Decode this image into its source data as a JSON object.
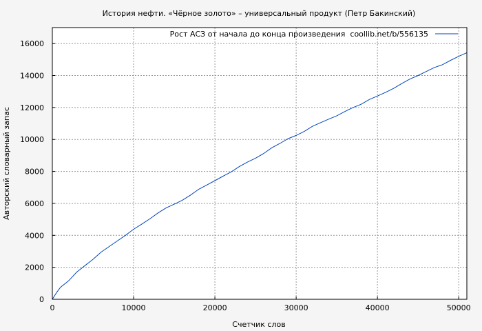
{
  "chart_data": {
    "type": "line",
    "title": "История нефти. «Чёрное золото» – универсальный продукт (Петр Бакинский)",
    "xlabel": "Счетчик слов",
    "ylabel": "Авторский словарный запас",
    "xlim": [
      0,
      51000
    ],
    "ylim": [
      0,
      17000
    ],
    "xticks": [
      0,
      10000,
      20000,
      30000,
      40000,
      50000
    ],
    "yticks": [
      0,
      2000,
      4000,
      6000,
      8000,
      10000,
      12000,
      14000,
      16000
    ],
    "grid": true,
    "legend_position": "top-right",
    "series": [
      {
        "name": "Рост АСЗ от начала до конца произведения  coollib.net/b/556135",
        "color": "#0044bb",
        "x": [
          0,
          500,
          1000,
          2000,
          3000,
          4000,
          5000,
          6000,
          7000,
          8000,
          9000,
          10000,
          11000,
          12000,
          13000,
          14000,
          15000,
          16000,
          17000,
          18000,
          19000,
          20000,
          21000,
          22000,
          23000,
          24000,
          25000,
          26000,
          27000,
          28000,
          29000,
          30000,
          31000,
          32000,
          33000,
          34000,
          35000,
          36000,
          37000,
          38000,
          39000,
          40000,
          41000,
          42000,
          43000,
          44000,
          45000,
          46000,
          47000,
          48000,
          49000,
          50000,
          51000
        ],
        "y": [
          0,
          400,
          750,
          1150,
          1700,
          2100,
          2500,
          2950,
          3300,
          3650,
          4000,
          4380,
          4700,
          5030,
          5400,
          5720,
          5950,
          6200,
          6520,
          6880,
          7150,
          7420,
          7700,
          7970,
          8300,
          8580,
          8830,
          9120,
          9480,
          9750,
          10050,
          10250,
          10500,
          10820,
          11050,
          11270,
          11480,
          11750,
          12000,
          12200,
          12500,
          12720,
          12950,
          13200,
          13500,
          13780,
          14000,
          14250,
          14500,
          14680,
          14950,
          15200,
          15430
        ]
      }
    ]
  }
}
